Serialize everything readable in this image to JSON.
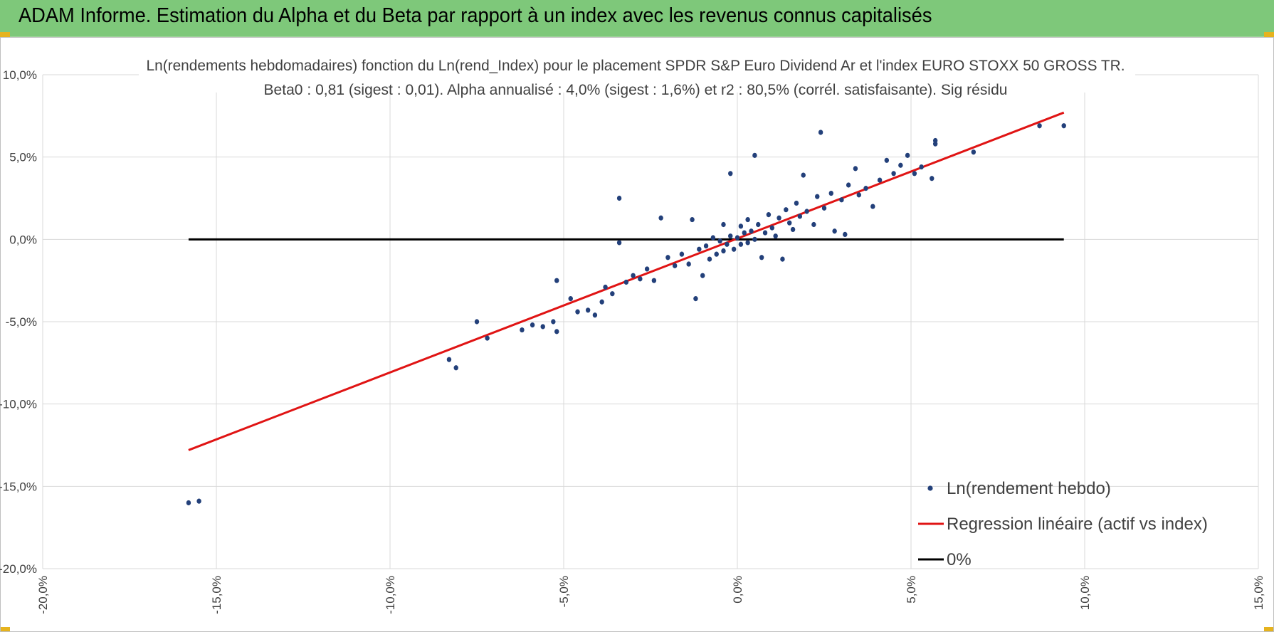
{
  "banner": {
    "title": "ADAM Informe. Estimation du Alpha et du Beta par rapport à un index avec les revenus connus capitalisés"
  },
  "chart_data": {
    "type": "scatter",
    "title": "Ln(rendements hebdomadaires) fonction du Ln(rend_Index) pour le placement SPDR S&P Euro Dividend Ar et l'index EURO STOXX 50 GROSS TR.",
    "subtitle": "Beta0 : 0,81 (sigest : 0,01).  Alpha annualisé : 4,0% (sigest : 1,6%) et r2 : 80,5% (corrél. satisfaisante). Sig résidu",
    "xlabel": "",
    "ylabel": "",
    "xlim": [
      -20,
      15
    ],
    "ylim": [
      -20,
      10
    ],
    "x_tick_labels": [
      "-20,0%",
      "-15,0%",
      "-10,0%",
      "-5,0%",
      "0,0%",
      "5,0%",
      "10,0%",
      "15,0%"
    ],
    "y_tick_labels": [
      "10,0%",
      "5,0%",
      "0,0%",
      "-5,0%",
      "-10,0%",
      "-15,0%",
      "-20,0%"
    ],
    "grid": true,
    "legend_position": "bottom-right",
    "colors": {
      "scatter": "#23407a",
      "regression": "#e01414",
      "zero_line": "#000000",
      "grid": "#d9d9d9"
    },
    "series": [
      {
        "name": "Ln(rendement hebdo)",
        "kind": "scatter",
        "points": [
          [
            -15.8,
            -16.0
          ],
          [
            -15.5,
            -15.9
          ],
          [
            -8.3,
            -7.3
          ],
          [
            -8.1,
            -7.8
          ],
          [
            -7.5,
            -5.0
          ],
          [
            -7.2,
            -6.0
          ],
          [
            -6.2,
            -5.5
          ],
          [
            -5.9,
            -5.2
          ],
          [
            -5.6,
            -5.3
          ],
          [
            -5.3,
            -5.0
          ],
          [
            -5.2,
            -5.6
          ],
          [
            -5.2,
            -2.5
          ],
          [
            -4.8,
            -3.6
          ],
          [
            -4.6,
            -4.4
          ],
          [
            -4.3,
            -4.3
          ],
          [
            -4.1,
            -4.6
          ],
          [
            -3.9,
            -3.8
          ],
          [
            -3.8,
            -2.9
          ],
          [
            -3.6,
            -3.3
          ],
          [
            -3.4,
            2.5
          ],
          [
            -3.4,
            -0.2
          ],
          [
            -3.2,
            -2.6
          ],
          [
            -3.0,
            -2.2
          ],
          [
            -2.8,
            -2.4
          ],
          [
            -2.6,
            -1.8
          ],
          [
            -2.4,
            -2.5
          ],
          [
            -2.2,
            1.3
          ],
          [
            -2.0,
            -1.1
          ],
          [
            -1.8,
            -1.6
          ],
          [
            -1.6,
            -0.9
          ],
          [
            -1.4,
            -1.5
          ],
          [
            -1.3,
            1.2
          ],
          [
            -1.2,
            -3.6
          ],
          [
            -1.1,
            -0.6
          ],
          [
            -1.0,
            -2.2
          ],
          [
            -0.9,
            -0.4
          ],
          [
            -0.8,
            -1.2
          ],
          [
            -0.7,
            0.1
          ],
          [
            -0.6,
            -0.9
          ],
          [
            -0.5,
            -0.1
          ],
          [
            -0.4,
            0.9
          ],
          [
            -0.4,
            -0.7
          ],
          [
            -0.3,
            -0.3
          ],
          [
            -0.2,
            4.0
          ],
          [
            -0.2,
            0.2
          ],
          [
            -0.1,
            -0.6
          ],
          [
            0.0,
            0.1
          ],
          [
            0.1,
            -0.3
          ],
          [
            0.1,
            0.8
          ],
          [
            0.2,
            0.4
          ],
          [
            0.3,
            -0.2
          ],
          [
            0.3,
            1.2
          ],
          [
            0.4,
            0.5
          ],
          [
            0.5,
            5.1
          ],
          [
            0.5,
            0.0
          ],
          [
            0.6,
            0.9
          ],
          [
            0.7,
            -1.1
          ],
          [
            0.8,
            0.4
          ],
          [
            0.9,
            1.5
          ],
          [
            1.0,
            0.7
          ],
          [
            1.1,
            0.2
          ],
          [
            1.2,
            1.3
          ],
          [
            1.3,
            -1.2
          ],
          [
            1.4,
            1.8
          ],
          [
            1.5,
            1.0
          ],
          [
            1.6,
            0.6
          ],
          [
            1.7,
            2.2
          ],
          [
            1.8,
            1.4
          ],
          [
            1.9,
            3.9
          ],
          [
            2.0,
            1.7
          ],
          [
            2.2,
            0.9
          ],
          [
            2.3,
            2.6
          ],
          [
            2.4,
            6.5
          ],
          [
            2.5,
            1.9
          ],
          [
            2.7,
            2.8
          ],
          [
            2.8,
            0.5
          ],
          [
            3.0,
            2.4
          ],
          [
            3.1,
            0.3
          ],
          [
            3.2,
            3.3
          ],
          [
            3.4,
            4.3
          ],
          [
            3.5,
            2.7
          ],
          [
            3.7,
            3.1
          ],
          [
            3.9,
            2.0
          ],
          [
            4.1,
            3.6
          ],
          [
            4.3,
            4.8
          ],
          [
            4.5,
            4.0
          ],
          [
            4.7,
            4.5
          ],
          [
            4.9,
            5.1
          ],
          [
            5.1,
            4.0
          ],
          [
            5.3,
            4.4
          ],
          [
            5.6,
            3.7
          ],
          [
            5.7,
            6.0
          ],
          [
            5.7,
            5.8
          ],
          [
            6.8,
            5.3
          ],
          [
            8.7,
            6.9
          ],
          [
            9.4,
            6.9
          ]
        ]
      },
      {
        "name": "Regression linéaire (actif vs index)",
        "kind": "line",
        "x": [
          -15.8,
          9.4
        ],
        "y": [
          -12.8,
          7.7
        ]
      },
      {
        "name": "0%",
        "kind": "line",
        "x": [
          -15.8,
          9.4
        ],
        "y": [
          0.0,
          0.0
        ]
      }
    ]
  }
}
